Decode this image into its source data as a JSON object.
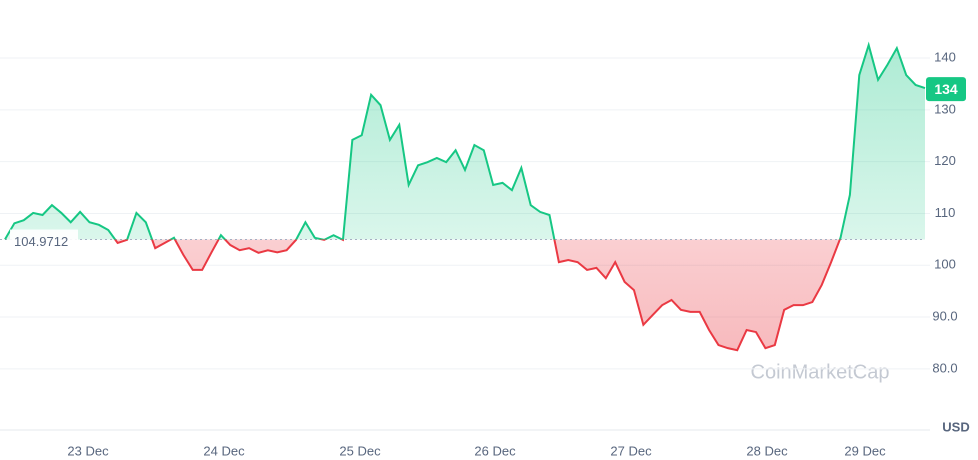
{
  "chart_data": {
    "type": "line",
    "values": [
      105.0,
      108.1,
      108.7,
      110.1,
      109.7,
      111.6,
      110.1,
      108.3,
      110.3,
      108.3,
      107.8,
      106.8,
      104.3,
      104.9,
      110.1,
      108.3,
      103.3,
      104.3,
      105.3,
      102.0,
      99.1,
      99.1,
      102.5,
      105.8,
      103.9,
      102.9,
      103.3,
      102.4,
      102.9,
      102.5,
      102.9,
      104.9,
      108.3,
      105.3,
      104.9,
      105.8,
      104.9,
      124.2,
      125.1,
      132.9,
      130.9,
      124.2,
      127.1,
      115.5,
      119.3,
      119.9,
      120.7,
      119.9,
      122.2,
      118.4,
      123.2,
      122.2,
      115.5,
      115.9,
      114.5,
      118.8,
      111.6,
      110.3,
      109.7,
      100.6,
      101.0,
      100.6,
      99.1,
      99.5,
      97.5,
      100.6,
      96.8,
      95.2,
      88.5,
      90.4,
      92.3,
      93.3,
      91.4,
      91.0,
      91.0,
      87.5,
      84.6,
      84.0,
      83.6,
      87.5,
      87.1,
      84.0,
      84.6,
      91.4,
      92.3,
      92.3,
      92.9,
      96.2,
      100.6,
      105.3,
      113.6,
      136.7,
      142.5,
      135.8,
      138.7,
      141.9,
      136.7,
      134.8,
      134.2
    ],
    "above_color": "#16c784",
    "below_color": "#ea3943",
    "baseline": 104.9712,
    "current_price": 134,
    "ylim": [
      68.2,
      151.2
    ],
    "yticks": [
      {
        "value": 80,
        "label": "80.0"
      },
      {
        "value": 90,
        "label": "90.0"
      },
      100,
      110,
      120,
      130,
      140
    ],
    "xtick_labels": [
      "23 Dec",
      "24 Dec",
      "25 Dec",
      "26 Dec",
      "27 Dec",
      "28 Dec",
      "29 Dec"
    ],
    "currency": "USD",
    "watermark": "CoinMarketCap",
    "grid": true
  }
}
